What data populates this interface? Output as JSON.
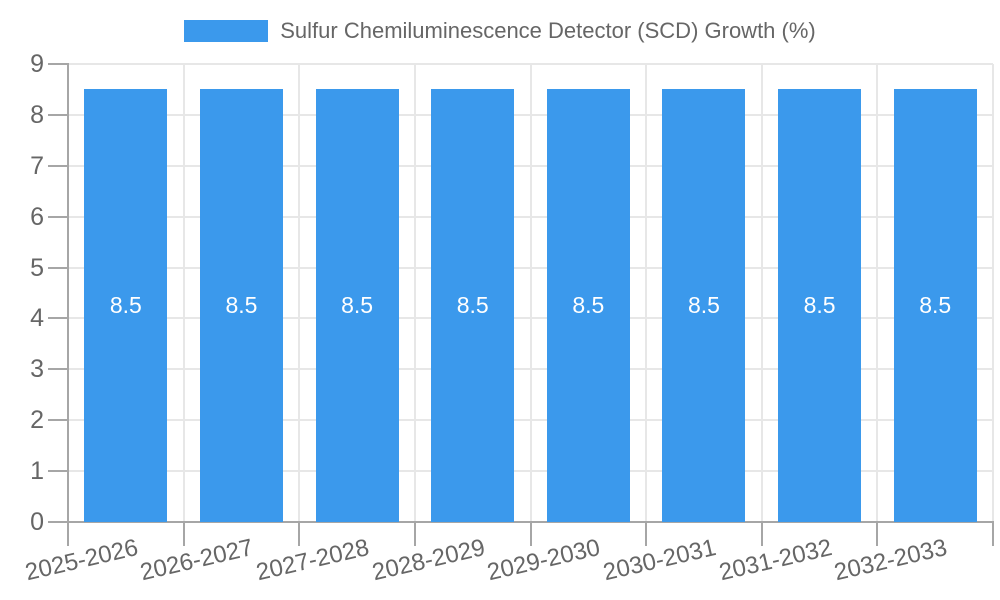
{
  "chart_data": {
    "type": "bar",
    "title": "Sulfur Chemiluminescence Detector (SCD) Growth (%)",
    "legend_label": "Sulfur Chemiluminescence Detector (SCD) Growth (%)",
    "legend_position": "top",
    "categories": [
      "2025-2026",
      "2026-2027",
      "2027-2028",
      "2028-2029",
      "2029-2030",
      "2030-2031",
      "2031-2032",
      "2032-2033"
    ],
    "values": [
      8.5,
      8.5,
      8.5,
      8.5,
      8.5,
      8.5,
      8.5,
      8.5
    ],
    "bar_labels": [
      "8.5",
      "8.5",
      "8.5",
      "8.5",
      "8.5",
      "8.5",
      "8.5",
      "8.5"
    ],
    "xlabel": "",
    "ylabel": "",
    "ylim": [
      0,
      9
    ],
    "y_ticks": [
      0,
      1,
      2,
      3,
      4,
      5,
      6,
      7,
      8,
      9
    ],
    "grid": true,
    "colors": {
      "bar": "#3B99EC",
      "bar_label": "#FFFFFF",
      "axis_text": "#666666",
      "grid_line": "#E7E7E7",
      "axis_line": "#A6A6A6",
      "background": "#FFFFFF"
    }
  }
}
